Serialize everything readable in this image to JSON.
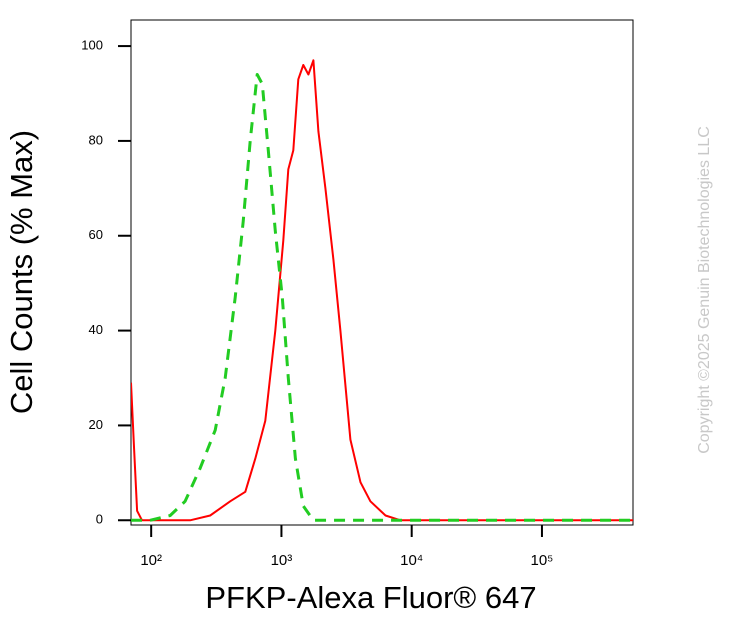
{
  "chart_data": {
    "type": "line",
    "x_label": "PFKP-Alexa Fluor® 647",
    "y_label": "Cell Counts (% Max)",
    "watermark": "Copyright ©2025 Genuin Biotechnologies LLC",
    "x_scale": "log",
    "xlim": [
      70,
      500000
    ],
    "ylim": [
      -1,
      105.5
    ],
    "xticks": [
      {
        "value": 100,
        "label": "10²"
      },
      {
        "value": 1000,
        "label": "10³"
      },
      {
        "value": 10000,
        "label": "10⁴"
      },
      {
        "value": 100000,
        "label": "10⁵"
      }
    ],
    "yticks": [
      0,
      20,
      40,
      60,
      80,
      100
    ],
    "series": [
      {
        "color": "#ff0000",
        "dash": false,
        "x": [
          70,
          74,
          78,
          85,
          117,
          199,
          284,
          404,
          528,
          630,
          752,
          898,
          1033,
          1130,
          1234,
          1348,
          1473,
          1610,
          1758,
          1921,
          2174,
          2505,
          2836,
          3387,
          4045,
          4823,
          6295,
          8204,
          11700,
          48200,
          500000
        ],
        "values": [
          29,
          15,
          2,
          0,
          0,
          0,
          1,
          4,
          6,
          13,
          21,
          40,
          59,
          74,
          78,
          93,
          96,
          94,
          97,
          82,
          70,
          55,
          40,
          17,
          8,
          4,
          1,
          0,
          0,
          0,
          0
        ]
      },
      {
        "color": "#22cc22",
        "dash": true,
        "x": [
          70,
          98,
          140,
          182,
          238,
          310,
          370,
          442,
          509,
          576,
          652,
          713,
          793,
          898,
          1016,
          1130,
          1279,
          1473,
          1758,
          2836,
          500000
        ],
        "values": [
          0,
          0,
          1,
          4,
          11,
          19,
          30,
          47,
          63,
          80,
          94,
          92,
          78,
          61,
          47,
          30,
          13,
          3,
          0,
          0,
          0
        ]
      }
    ]
  }
}
